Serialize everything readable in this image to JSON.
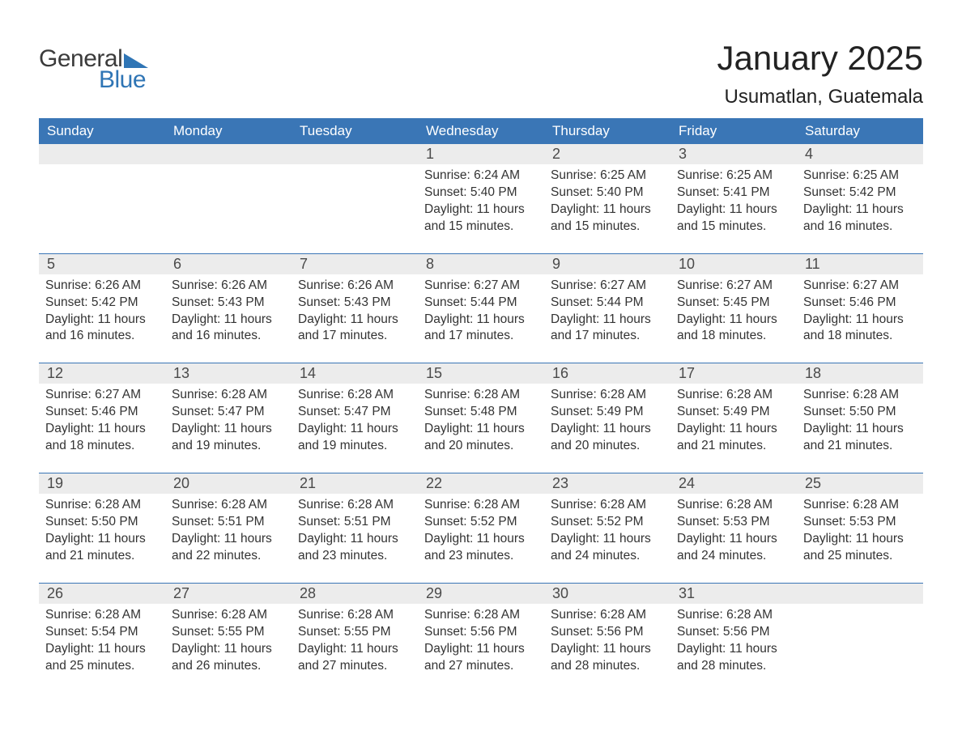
{
  "logo": {
    "general": "General",
    "blue": "Blue"
  },
  "title": "January 2025",
  "location": "Usumatlan, Guatemala",
  "colors": {
    "header_bg": "#3a76b6",
    "header_text": "#ffffff",
    "strip_bg": "#ececec",
    "body_text": "#333333",
    "rule": "#3a76b6",
    "logo_gray": "#3b3b3b",
    "logo_blue": "#2f75b5"
  },
  "columns": [
    "Sunday",
    "Monday",
    "Tuesday",
    "Wednesday",
    "Thursday",
    "Friday",
    "Saturday"
  ],
  "weeks": [
    [
      null,
      null,
      null,
      {
        "n": "1",
        "sr": "Sunrise: 6:24 AM",
        "ss": "Sunset: 5:40 PM",
        "d1": "Daylight: 11 hours",
        "d2": "and 15 minutes."
      },
      {
        "n": "2",
        "sr": "Sunrise: 6:25 AM",
        "ss": "Sunset: 5:40 PM",
        "d1": "Daylight: 11 hours",
        "d2": "and 15 minutes."
      },
      {
        "n": "3",
        "sr": "Sunrise: 6:25 AM",
        "ss": "Sunset: 5:41 PM",
        "d1": "Daylight: 11 hours",
        "d2": "and 15 minutes."
      },
      {
        "n": "4",
        "sr": "Sunrise: 6:25 AM",
        "ss": "Sunset: 5:42 PM",
        "d1": "Daylight: 11 hours",
        "d2": "and 16 minutes."
      }
    ],
    [
      {
        "n": "5",
        "sr": "Sunrise: 6:26 AM",
        "ss": "Sunset: 5:42 PM",
        "d1": "Daylight: 11 hours",
        "d2": "and 16 minutes."
      },
      {
        "n": "6",
        "sr": "Sunrise: 6:26 AM",
        "ss": "Sunset: 5:43 PM",
        "d1": "Daylight: 11 hours",
        "d2": "and 16 minutes."
      },
      {
        "n": "7",
        "sr": "Sunrise: 6:26 AM",
        "ss": "Sunset: 5:43 PM",
        "d1": "Daylight: 11 hours",
        "d2": "and 17 minutes."
      },
      {
        "n": "8",
        "sr": "Sunrise: 6:27 AM",
        "ss": "Sunset: 5:44 PM",
        "d1": "Daylight: 11 hours",
        "d2": "and 17 minutes."
      },
      {
        "n": "9",
        "sr": "Sunrise: 6:27 AM",
        "ss": "Sunset: 5:44 PM",
        "d1": "Daylight: 11 hours",
        "d2": "and 17 minutes."
      },
      {
        "n": "10",
        "sr": "Sunrise: 6:27 AM",
        "ss": "Sunset: 5:45 PM",
        "d1": "Daylight: 11 hours",
        "d2": "and 18 minutes."
      },
      {
        "n": "11",
        "sr": "Sunrise: 6:27 AM",
        "ss": "Sunset: 5:46 PM",
        "d1": "Daylight: 11 hours",
        "d2": "and 18 minutes."
      }
    ],
    [
      {
        "n": "12",
        "sr": "Sunrise: 6:27 AM",
        "ss": "Sunset: 5:46 PM",
        "d1": "Daylight: 11 hours",
        "d2": "and 18 minutes."
      },
      {
        "n": "13",
        "sr": "Sunrise: 6:28 AM",
        "ss": "Sunset: 5:47 PM",
        "d1": "Daylight: 11 hours",
        "d2": "and 19 minutes."
      },
      {
        "n": "14",
        "sr": "Sunrise: 6:28 AM",
        "ss": "Sunset: 5:47 PM",
        "d1": "Daylight: 11 hours",
        "d2": "and 19 minutes."
      },
      {
        "n": "15",
        "sr": "Sunrise: 6:28 AM",
        "ss": "Sunset: 5:48 PM",
        "d1": "Daylight: 11 hours",
        "d2": "and 20 minutes."
      },
      {
        "n": "16",
        "sr": "Sunrise: 6:28 AM",
        "ss": "Sunset: 5:49 PM",
        "d1": "Daylight: 11 hours",
        "d2": "and 20 minutes."
      },
      {
        "n": "17",
        "sr": "Sunrise: 6:28 AM",
        "ss": "Sunset: 5:49 PM",
        "d1": "Daylight: 11 hours",
        "d2": "and 21 minutes."
      },
      {
        "n": "18",
        "sr": "Sunrise: 6:28 AM",
        "ss": "Sunset: 5:50 PM",
        "d1": "Daylight: 11 hours",
        "d2": "and 21 minutes."
      }
    ],
    [
      {
        "n": "19",
        "sr": "Sunrise: 6:28 AM",
        "ss": "Sunset: 5:50 PM",
        "d1": "Daylight: 11 hours",
        "d2": "and 21 minutes."
      },
      {
        "n": "20",
        "sr": "Sunrise: 6:28 AM",
        "ss": "Sunset: 5:51 PM",
        "d1": "Daylight: 11 hours",
        "d2": "and 22 minutes."
      },
      {
        "n": "21",
        "sr": "Sunrise: 6:28 AM",
        "ss": "Sunset: 5:51 PM",
        "d1": "Daylight: 11 hours",
        "d2": "and 23 minutes."
      },
      {
        "n": "22",
        "sr": "Sunrise: 6:28 AM",
        "ss": "Sunset: 5:52 PM",
        "d1": "Daylight: 11 hours",
        "d2": "and 23 minutes."
      },
      {
        "n": "23",
        "sr": "Sunrise: 6:28 AM",
        "ss": "Sunset: 5:52 PM",
        "d1": "Daylight: 11 hours",
        "d2": "and 24 minutes."
      },
      {
        "n": "24",
        "sr": "Sunrise: 6:28 AM",
        "ss": "Sunset: 5:53 PM",
        "d1": "Daylight: 11 hours",
        "d2": "and 24 minutes."
      },
      {
        "n": "25",
        "sr": "Sunrise: 6:28 AM",
        "ss": "Sunset: 5:53 PM",
        "d1": "Daylight: 11 hours",
        "d2": "and 25 minutes."
      }
    ],
    [
      {
        "n": "26",
        "sr": "Sunrise: 6:28 AM",
        "ss": "Sunset: 5:54 PM",
        "d1": "Daylight: 11 hours",
        "d2": "and 25 minutes."
      },
      {
        "n": "27",
        "sr": "Sunrise: 6:28 AM",
        "ss": "Sunset: 5:55 PM",
        "d1": "Daylight: 11 hours",
        "d2": "and 26 minutes."
      },
      {
        "n": "28",
        "sr": "Sunrise: 6:28 AM",
        "ss": "Sunset: 5:55 PM",
        "d1": "Daylight: 11 hours",
        "d2": "and 27 minutes."
      },
      {
        "n": "29",
        "sr": "Sunrise: 6:28 AM",
        "ss": "Sunset: 5:56 PM",
        "d1": "Daylight: 11 hours",
        "d2": "and 27 minutes."
      },
      {
        "n": "30",
        "sr": "Sunrise: 6:28 AM",
        "ss": "Sunset: 5:56 PM",
        "d1": "Daylight: 11 hours",
        "d2": "and 28 minutes."
      },
      {
        "n": "31",
        "sr": "Sunrise: 6:28 AM",
        "ss": "Sunset: 5:56 PM",
        "d1": "Daylight: 11 hours",
        "d2": "and 28 minutes."
      },
      null
    ]
  ]
}
